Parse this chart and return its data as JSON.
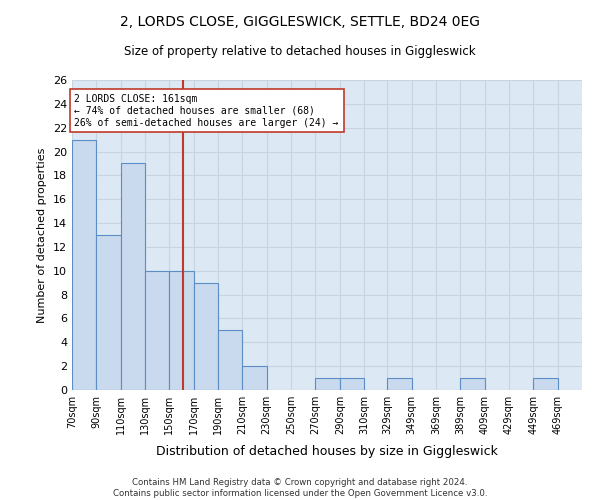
{
  "title": "2, LORDS CLOSE, GIGGLESWICK, SETTLE, BD24 0EG",
  "subtitle": "Size of property relative to detached houses in Giggleswick",
  "xlabel": "Distribution of detached houses by size in Giggleswick",
  "ylabel": "Number of detached properties",
  "bin_labels": [
    "70sqm",
    "90sqm",
    "110sqm",
    "130sqm",
    "150sqm",
    "170sqm",
    "190sqm",
    "210sqm",
    "230sqm",
    "250sqm",
    "270sqm",
    "290sqm",
    "310sqm",
    "329sqm",
    "349sqm",
    "369sqm",
    "389sqm",
    "409sqm",
    "429sqm",
    "449sqm",
    "469sqm"
  ],
  "bin_edges": [
    70,
    90,
    110,
    130,
    150,
    170,
    190,
    210,
    230,
    250,
    270,
    290,
    310,
    329,
    349,
    369,
    389,
    409,
    429,
    449,
    469,
    489
  ],
  "counts": [
    21,
    13,
    19,
    10,
    10,
    9,
    5,
    2,
    0,
    0,
    1,
    1,
    0,
    1,
    0,
    0,
    1,
    0,
    0,
    1,
    0
  ],
  "bar_color": "#c9d9ee",
  "bar_edge_color": "#5b8ec4",
  "reference_line_x": 161,
  "reference_line_color": "#c0392b",
  "annotation_text": "2 LORDS CLOSE: 161sqm\n← 74% of detached houses are smaller (68)\n26% of semi-detached houses are larger (24) →",
  "annotation_box_color": "#ffffff",
  "annotation_box_edge_color": "#c0392b",
  "ylim": [
    0,
    26
  ],
  "yticks": [
    0,
    2,
    4,
    6,
    8,
    10,
    12,
    14,
    16,
    18,
    20,
    22,
    24,
    26
  ],
  "footer": "Contains HM Land Registry data © Crown copyright and database right 2024.\nContains public sector information licensed under the Open Government Licence v3.0.",
  "grid_color": "#c8d4e0",
  "background_color": "#dce9f5"
}
